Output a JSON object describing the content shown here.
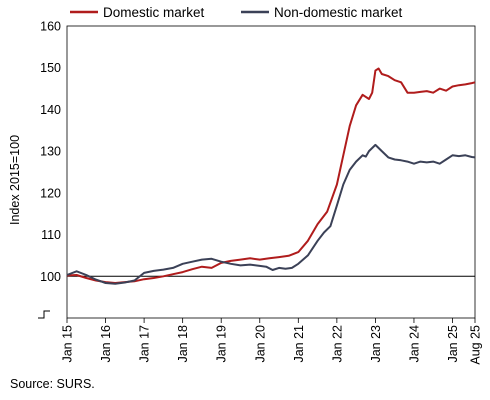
{
  "chart_data": {
    "type": "line",
    "ylabel": "Index 2015=100",
    "ylim": [
      90,
      160
    ],
    "yticks": [
      100,
      110,
      120,
      130,
      140,
      150,
      160
    ],
    "x_tick_labels": [
      "Jan 15",
      "Jan 16",
      "Jan 17",
      "Jan 18",
      "Jan 19",
      "Jan 20",
      "Jan 21",
      "Jan 22",
      "Jan 23",
      "Jan 24",
      "Jan 25",
      "Aug 25"
    ],
    "x_tick_positions": [
      0,
      12,
      24,
      36,
      48,
      60,
      72,
      84,
      96,
      108,
      120,
      127
    ],
    "reference_line": 100,
    "legend_position": "top",
    "series": [
      {
        "name": "Domestic market",
        "color": "#b01c1c",
        "points": [
          [
            0,
            100.2
          ],
          [
            3,
            100.3
          ],
          [
            6,
            99.6
          ],
          [
            9,
            99.0
          ],
          [
            12,
            98.6
          ],
          [
            15,
            98.4
          ],
          [
            18,
            98.6
          ],
          [
            21,
            98.8
          ],
          [
            24,
            99.3
          ],
          [
            27,
            99.6
          ],
          [
            30,
            100.0
          ],
          [
            33,
            100.5
          ],
          [
            36,
            101.0
          ],
          [
            39,
            101.7
          ],
          [
            42,
            102.3
          ],
          [
            45,
            102.0
          ],
          [
            48,
            103.2
          ],
          [
            51,
            103.7
          ],
          [
            54,
            104.0
          ],
          [
            57,
            104.3
          ],
          [
            60,
            104.0
          ],
          [
            63,
            104.3
          ],
          [
            66,
            104.6
          ],
          [
            69,
            104.9
          ],
          [
            72,
            105.8
          ],
          [
            75,
            108.5
          ],
          [
            78,
            112.5
          ],
          [
            81,
            115.5
          ],
          [
            84,
            122.0
          ],
          [
            86,
            129.0
          ],
          [
            88,
            136.0
          ],
          [
            90,
            141.0
          ],
          [
            92,
            143.5
          ],
          [
            94,
            142.5
          ],
          [
            95,
            144.0
          ],
          [
            96,
            149.3
          ],
          [
            97,
            149.8
          ],
          [
            98,
            148.5
          ],
          [
            100,
            148.0
          ],
          [
            102,
            147.0
          ],
          [
            104,
            146.5
          ],
          [
            106,
            144.0
          ],
          [
            108,
            144.0
          ],
          [
            110,
            144.2
          ],
          [
            112,
            144.4
          ],
          [
            114,
            144.0
          ],
          [
            116,
            145.0
          ],
          [
            118,
            144.5
          ],
          [
            120,
            145.5
          ],
          [
            122,
            145.8
          ],
          [
            124,
            146.0
          ],
          [
            126,
            146.3
          ],
          [
            127,
            146.5
          ]
        ]
      },
      {
        "name": "Non-domestic market",
        "color": "#3b4157",
        "points": [
          [
            0,
            100.3
          ],
          [
            3,
            101.2
          ],
          [
            6,
            100.3
          ],
          [
            9,
            99.2
          ],
          [
            12,
            98.4
          ],
          [
            15,
            98.2
          ],
          [
            18,
            98.5
          ],
          [
            21,
            99.0
          ],
          [
            24,
            100.8
          ],
          [
            27,
            101.3
          ],
          [
            30,
            101.6
          ],
          [
            33,
            102.0
          ],
          [
            36,
            103.0
          ],
          [
            39,
            103.5
          ],
          [
            42,
            104.0
          ],
          [
            45,
            104.2
          ],
          [
            48,
            103.5
          ],
          [
            51,
            103.0
          ],
          [
            54,
            102.6
          ],
          [
            57,
            102.8
          ],
          [
            60,
            102.5
          ],
          [
            62,
            102.3
          ],
          [
            64,
            101.5
          ],
          [
            66,
            102.0
          ],
          [
            68,
            101.8
          ],
          [
            70,
            102.0
          ],
          [
            72,
            103.0
          ],
          [
            75,
            105.0
          ],
          [
            78,
            108.5
          ],
          [
            80,
            110.5
          ],
          [
            82,
            112.0
          ],
          [
            84,
            117.0
          ],
          [
            86,
            122.0
          ],
          [
            88,
            125.5
          ],
          [
            90,
            127.5
          ],
          [
            92,
            129.0
          ],
          [
            93,
            128.7
          ],
          [
            94,
            130.0
          ],
          [
            96,
            131.5
          ],
          [
            98,
            130.0
          ],
          [
            100,
            128.5
          ],
          [
            102,
            128.0
          ],
          [
            104,
            127.8
          ],
          [
            106,
            127.5
          ],
          [
            108,
            127.0
          ],
          [
            110,
            127.5
          ],
          [
            112,
            127.3
          ],
          [
            114,
            127.5
          ],
          [
            116,
            127.0
          ],
          [
            118,
            128.0
          ],
          [
            120,
            129.0
          ],
          [
            122,
            128.8
          ],
          [
            124,
            129.0
          ],
          [
            126,
            128.6
          ],
          [
            127,
            128.5
          ]
        ]
      }
    ]
  },
  "source": "Source: SURS."
}
